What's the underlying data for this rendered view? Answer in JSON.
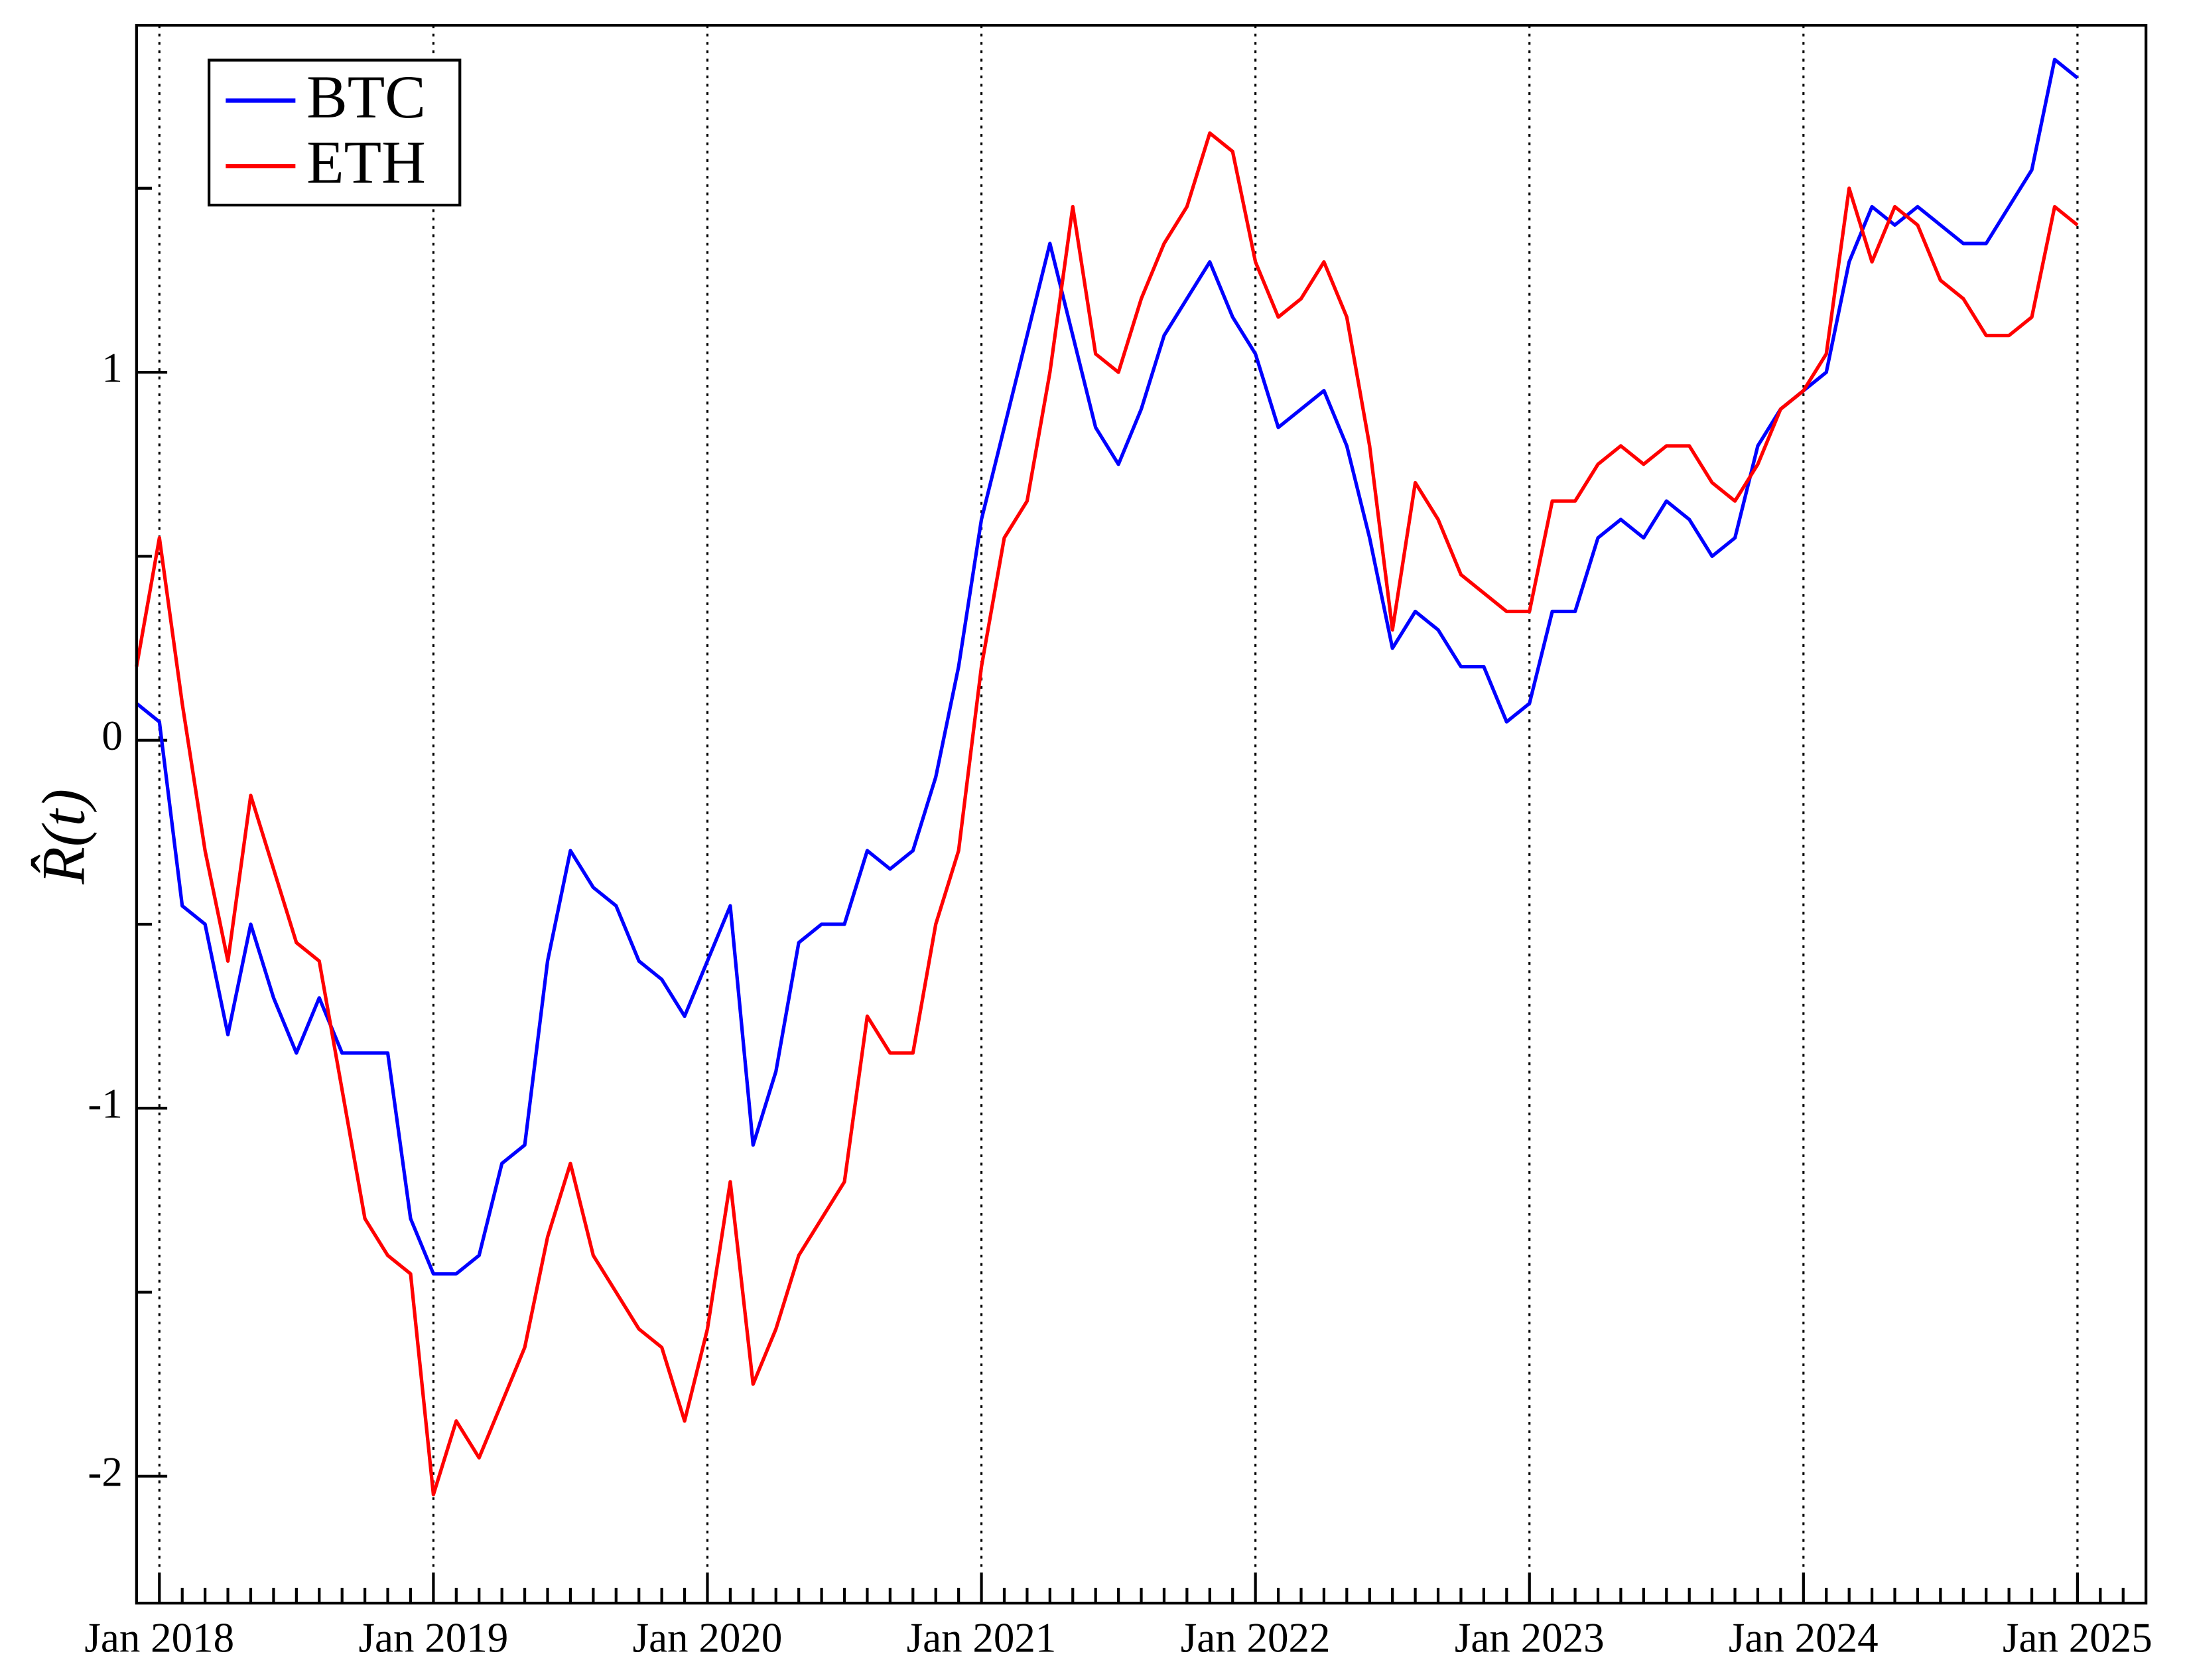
{
  "chart_data": {
    "type": "line",
    "ylabel": "R̂(t)",
    "x": [
      "2017-12",
      "2018-01",
      "2018-02",
      "2018-03",
      "2018-04",
      "2018-05",
      "2018-06",
      "2018-07",
      "2018-08",
      "2018-09",
      "2018-10",
      "2018-11",
      "2018-12",
      "2019-01",
      "2019-02",
      "2019-03",
      "2019-04",
      "2019-05",
      "2019-06",
      "2019-07",
      "2019-08",
      "2019-09",
      "2019-10",
      "2019-11",
      "2019-12",
      "2020-01",
      "2020-02",
      "2020-03",
      "2020-04",
      "2020-05",
      "2020-06",
      "2020-07",
      "2020-08",
      "2020-09",
      "2020-10",
      "2020-11",
      "2020-12",
      "2021-01",
      "2021-02",
      "2021-03",
      "2021-04",
      "2021-05",
      "2021-06",
      "2021-07",
      "2021-08",
      "2021-09",
      "2021-10",
      "2021-11",
      "2021-12",
      "2022-01",
      "2022-02",
      "2022-03",
      "2022-04",
      "2022-05",
      "2022-06",
      "2022-07",
      "2022-08",
      "2022-09",
      "2022-10",
      "2022-11",
      "2022-12",
      "2023-01",
      "2023-02",
      "2023-03",
      "2023-04",
      "2023-05",
      "2023-06",
      "2023-07",
      "2023-08",
      "2023-09",
      "2023-10",
      "2023-11",
      "2023-12",
      "2024-01",
      "2024-02",
      "2024-03",
      "2024-04",
      "2024-05",
      "2024-06",
      "2024-07",
      "2024-08",
      "2024-09",
      "2024-10",
      "2024-11",
      "2024-12",
      "2025-01"
    ],
    "series": [
      {
        "name": "BTC",
        "color": "#0000ff",
        "values": [
          0.1,
          0.05,
          -0.45,
          -0.5,
          -0.8,
          -0.5,
          -0.7,
          -0.85,
          -0.7,
          -0.85,
          -0.85,
          -0.85,
          -1.3,
          -1.45,
          -1.45,
          -1.4,
          -1.15,
          -1.1,
          -0.6,
          -0.3,
          -0.4,
          -0.45,
          -0.6,
          -0.65,
          -0.75,
          -0.6,
          -0.45,
          -1.1,
          -0.9,
          -0.55,
          -0.5,
          -0.5,
          -0.3,
          -0.35,
          -0.3,
          -0.1,
          0.2,
          0.6,
          0.85,
          1.1,
          1.35,
          1.1,
          0.85,
          0.75,
          0.9,
          1.1,
          1.2,
          1.3,
          1.15,
          1.05,
          0.85,
          0.9,
          0.95,
          0.8,
          0.55,
          0.25,
          0.35,
          0.3,
          0.2,
          0.2,
          0.05,
          0.1,
          0.35,
          0.35,
          0.55,
          0.6,
          0.55,
          0.65,
          0.6,
          0.5,
          0.55,
          0.8,
          0.9,
          0.95,
          1.0,
          1.3,
          1.45,
          1.4,
          1.45,
          1.4,
          1.35,
          1.35,
          1.45,
          1.55,
          1.85,
          1.8
        ]
      },
      {
        "name": "ETH",
        "color": "#ff0000",
        "values": [
          0.2,
          0.55,
          0.1,
          -0.3,
          -0.6,
          -0.15,
          -0.35,
          -0.55,
          -0.6,
          -0.95,
          -1.3,
          -1.4,
          -1.45,
          -2.05,
          -1.85,
          -1.95,
          -1.8,
          -1.65,
          -1.35,
          -1.15,
          -1.4,
          -1.5,
          -1.6,
          -1.65,
          -1.85,
          -1.6,
          -1.2,
          -1.75,
          -1.6,
          -1.4,
          -1.3,
          -1.2,
          -0.75,
          -0.85,
          -0.85,
          -0.5,
          -0.3,
          0.2,
          0.55,
          0.65,
          1.0,
          1.45,
          1.05,
          1.0,
          1.2,
          1.35,
          1.45,
          1.65,
          1.6,
          1.3,
          1.15,
          1.2,
          1.3,
          1.15,
          0.8,
          0.3,
          0.7,
          0.6,
          0.45,
          0.4,
          0.35,
          0.35,
          0.65,
          0.65,
          0.75,
          0.8,
          0.75,
          0.8,
          0.8,
          0.7,
          0.65,
          0.75,
          0.9,
          0.95,
          1.05,
          1.5,
          1.3,
          1.45,
          1.4,
          1.25,
          1.2,
          1.1,
          1.1,
          1.15,
          1.45,
          1.4
        ]
      }
    ],
    "xlim": [
      "2017-12",
      "2025-04"
    ],
    "xticks": [
      {
        "value": "2018-01",
        "label": "Jan 2018"
      },
      {
        "value": "2019-01",
        "label": "Jan 2019"
      },
      {
        "value": "2020-01",
        "label": "Jan 2020"
      },
      {
        "value": "2021-01",
        "label": "Jan 2021"
      },
      {
        "value": "2022-01",
        "label": "Jan 2022"
      },
      {
        "value": "2023-01",
        "label": "Jan 2023"
      },
      {
        "value": "2024-01",
        "label": "Jan 2024"
      },
      {
        "value": "2025-01",
        "label": "Jan 2025"
      }
    ],
    "ylim": [
      -2.345,
      1.943
    ],
    "yticks": [
      -2,
      -1,
      0,
      1
    ],
    "yminorticks": [
      -1.5,
      -0.5,
      0.5,
      1.5
    ],
    "xgrid": true,
    "legend": "upper left"
  }
}
